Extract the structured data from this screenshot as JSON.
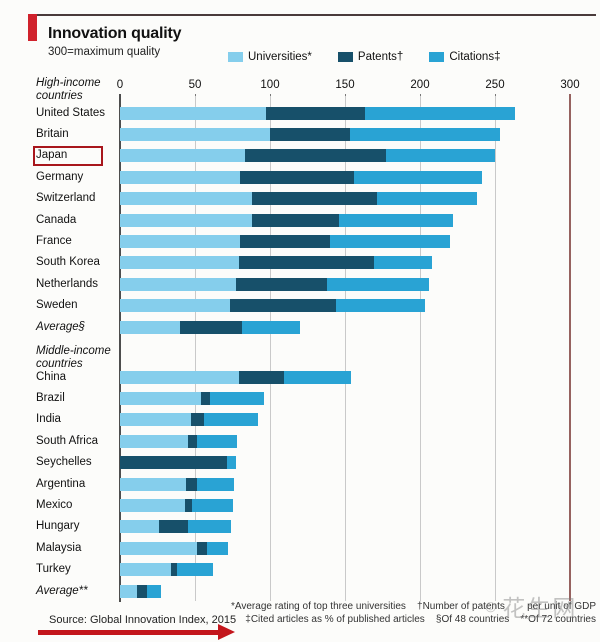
{
  "header": {
    "title": "Innovation quality",
    "subtitle": "300=maximum quality"
  },
  "legend": [
    {
      "label": "Universities*",
      "color": "#85ceec"
    },
    {
      "label": "Patents†",
      "color": "#17506a"
    },
    {
      "label": "Citations‡",
      "color": "#29a3d4"
    }
  ],
  "chart_data": {
    "type": "bar",
    "stacked": true,
    "orientation": "horizontal",
    "title": "Innovation quality",
    "subtitle": "300=maximum quality",
    "xlim": [
      0,
      300
    ],
    "x_ticks": [
      0,
      50,
      100,
      150,
      200,
      250,
      300
    ],
    "series_names": [
      "Universities",
      "Patents",
      "Citations"
    ],
    "groups": [
      {
        "label": "High-income countries",
        "rows": [
          {
            "label": "United States",
            "values": [
              97,
              66,
              100
            ]
          },
          {
            "label": "Britain",
            "values": [
              100,
              53,
              100
            ]
          },
          {
            "label": "Japan",
            "values": [
              83,
              94,
              73
            ],
            "highlight": true
          },
          {
            "label": "Germany",
            "values": [
              80,
              76,
              85
            ]
          },
          {
            "label": "Switzerland",
            "values": [
              88,
              83,
              67
            ]
          },
          {
            "label": "Canada",
            "values": [
              88,
              58,
              76
            ]
          },
          {
            "label": "France",
            "values": [
              80,
              60,
              80
            ]
          },
          {
            "label": "South Korea",
            "values": [
              79,
              90,
              39
            ]
          },
          {
            "label": "Netherlands",
            "values": [
              77,
              61,
              68
            ]
          },
          {
            "label": "Sweden",
            "values": [
              73,
              71,
              59
            ]
          },
          {
            "label": "Average§",
            "values": [
              40,
              41,
              39
            ],
            "italic": true
          }
        ]
      },
      {
        "label": "Middle-income countries",
        "rows": [
          {
            "label": "China",
            "values": [
              79,
              30,
              45
            ]
          },
          {
            "label": "Brazil",
            "values": [
              54,
              6,
              36
            ]
          },
          {
            "label": "India",
            "values": [
              47,
              9,
              36
            ]
          },
          {
            "label": "South Africa",
            "values": [
              45,
              6,
              27
            ]
          },
          {
            "label": "Seychelles",
            "values": [
              0,
              71,
              6
            ]
          },
          {
            "label": "Argentina",
            "values": [
              44,
              7,
              25
            ]
          },
          {
            "label": "Mexico",
            "values": [
              43,
              5,
              27
            ]
          },
          {
            "label": "Hungary",
            "values": [
              26,
              19,
              29
            ]
          },
          {
            "label": "Malaysia",
            "values": [
              51,
              7,
              14
            ]
          },
          {
            "label": "Turkey",
            "values": [
              34,
              4,
              24
            ]
          },
          {
            "label": "Average**",
            "values": [
              11,
              7,
              9
            ],
            "italic": true
          }
        ]
      }
    ]
  },
  "footer": {
    "source": "Source: Global Innovation Index, 2015",
    "footnote_line1": "*Average rating of top three universities    †Number of patents        per unit of GDP",
    "footnote_line2": "‡Cited articles as % of published articles    §Of 48 countries    **Of 72 countries"
  },
  "watermark": {
    "icon": "☺",
    "text": "花生网"
  }
}
